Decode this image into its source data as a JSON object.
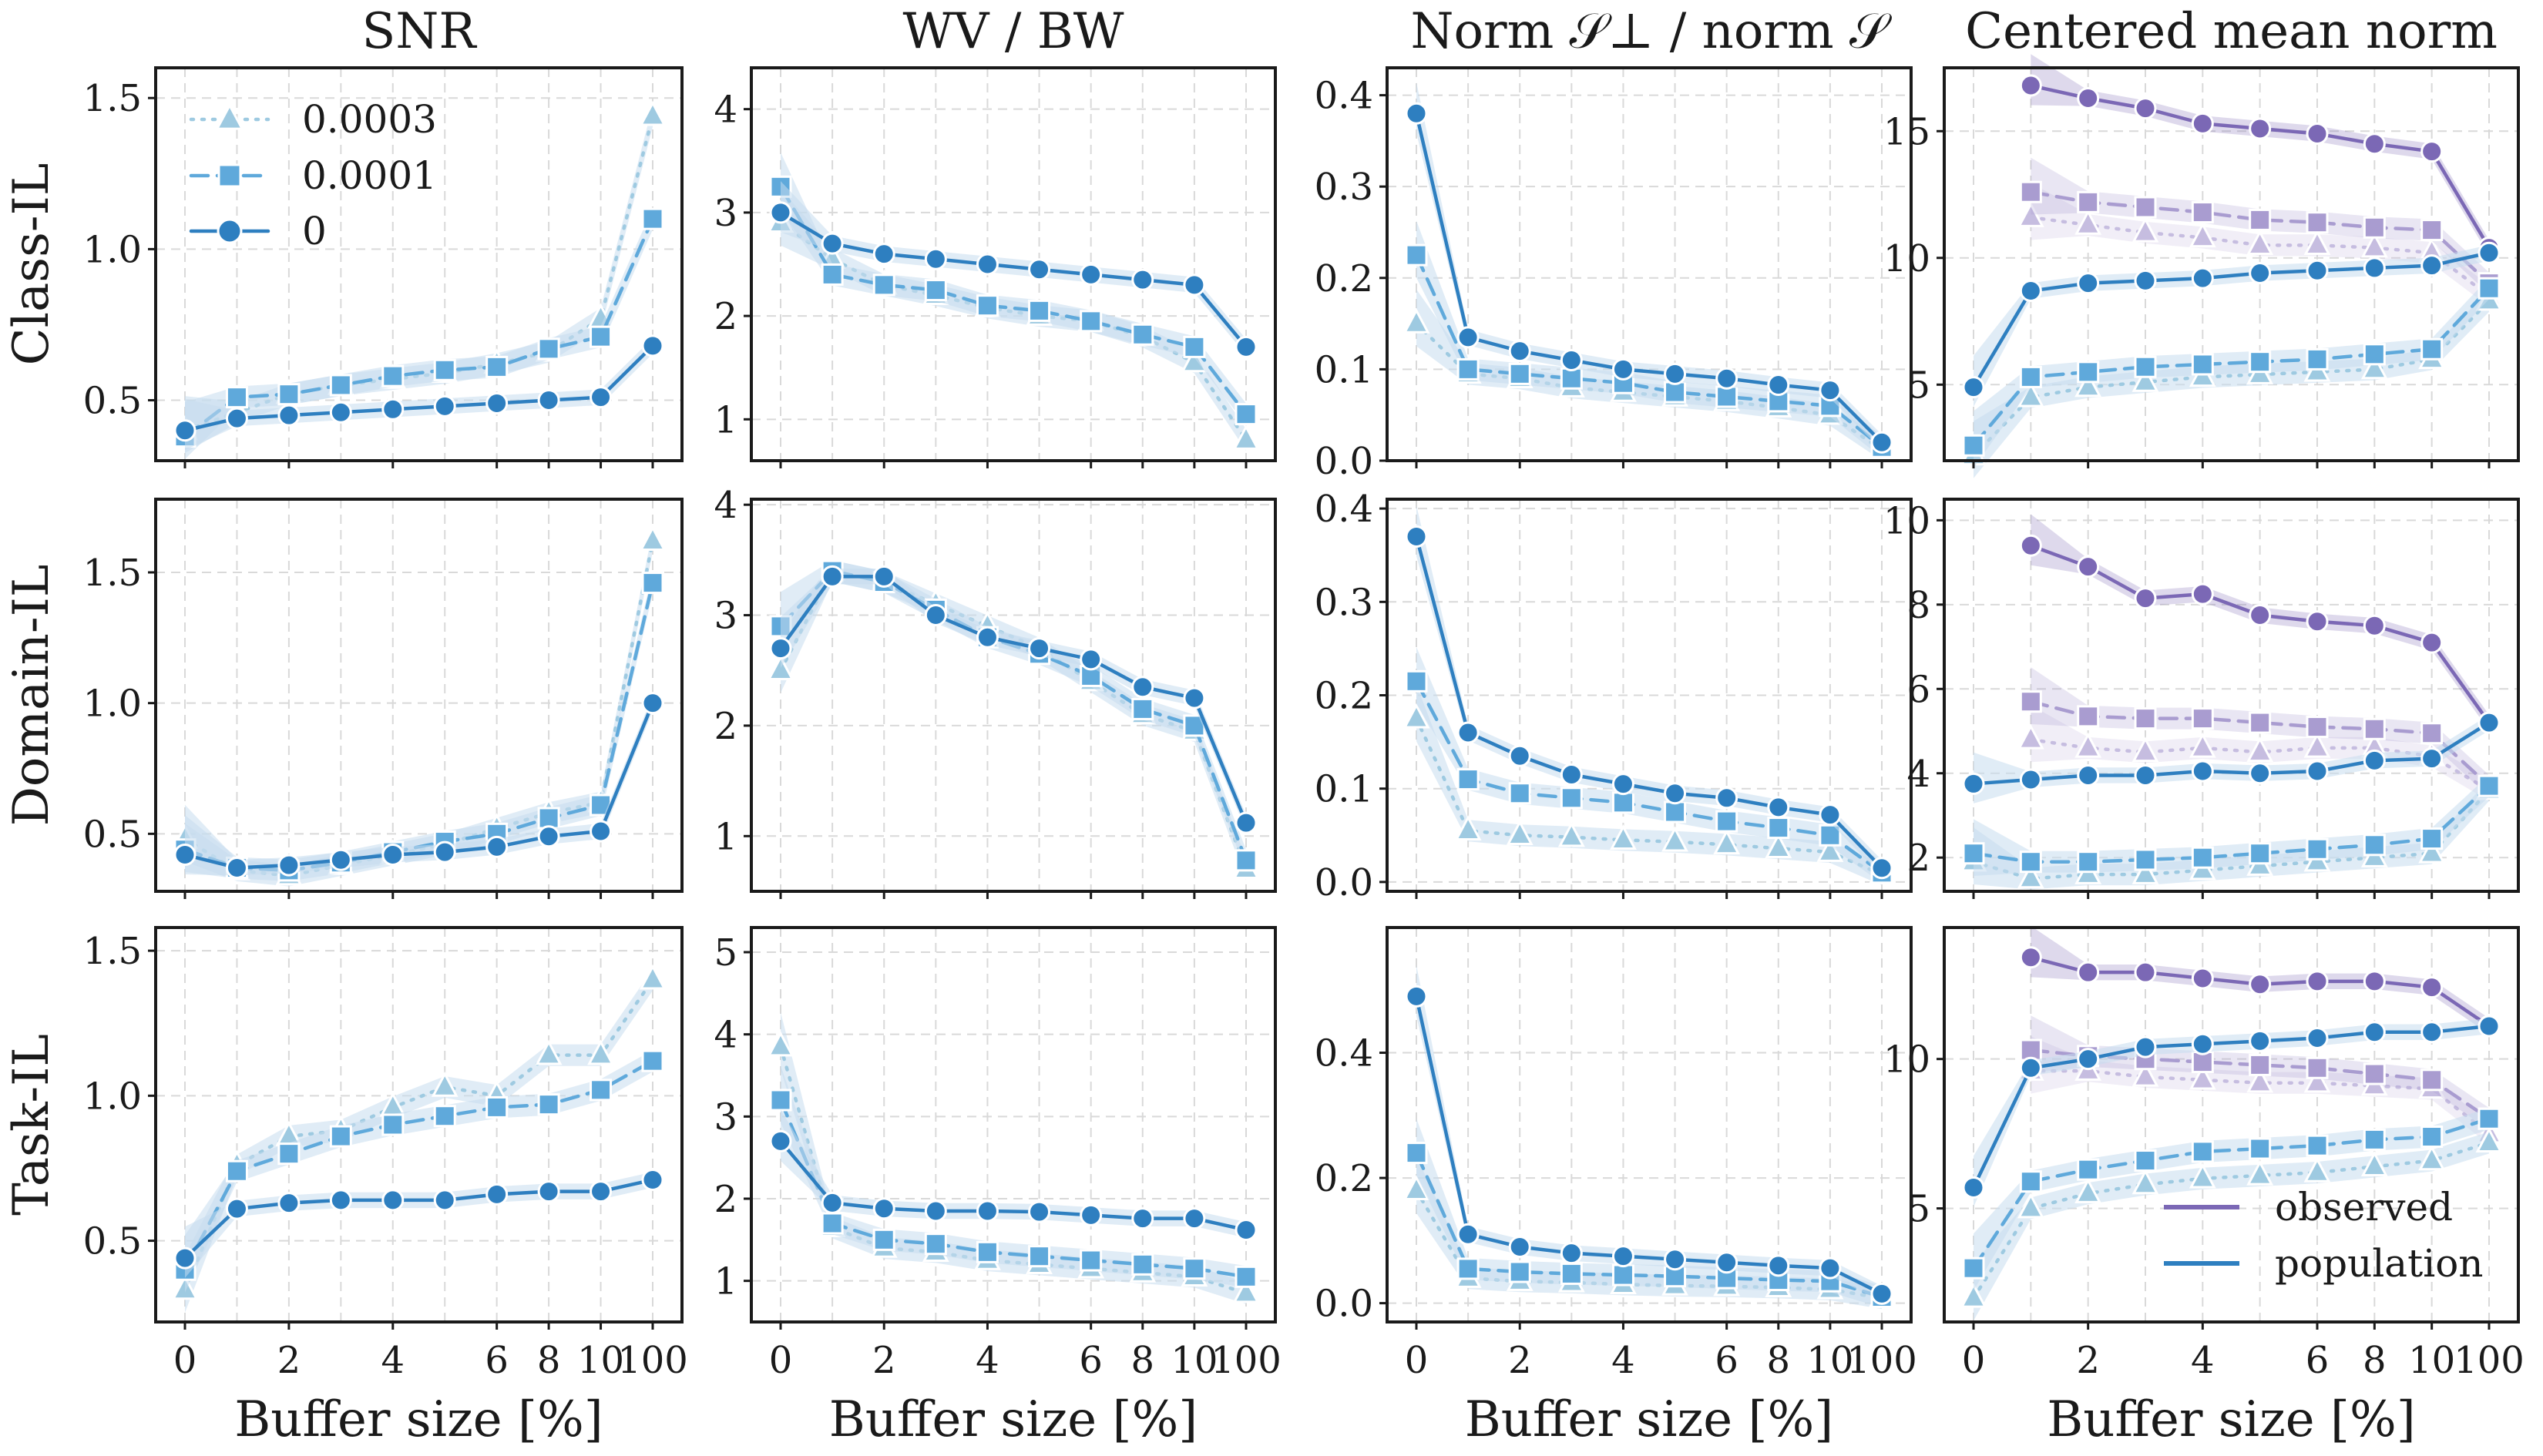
{
  "chart_data": {
    "type": "line",
    "x_tick_labels": [
      "0",
      "2",
      "4",
      "6",
      "8",
      "10",
      "100"
    ],
    "x_values": [
      "0",
      "1",
      "2",
      "3",
      "4",
      "5",
      "6",
      "8",
      "10",
      "100"
    ],
    "xlabel": "Buffer size [%]",
    "column_titles": [
      "SNR",
      "WV / BW",
      "Norm 𝒮⊥ / norm 𝒮",
      "Centered mean norm"
    ],
    "row_labels": [
      "Class-IL",
      "Domain-IL",
      "Task-IL"
    ],
    "legend_weight_decay": {
      "placement": "upper-left of Class-IL / SNR panel",
      "entries": [
        {
          "label": "0.0003",
          "marker": "triangle",
          "style": "dotted"
        },
        {
          "label": "0.0001",
          "marker": "square",
          "style": "dashed"
        },
        {
          "label": "0",
          "marker": "circle",
          "style": "solid"
        }
      ]
    },
    "legend_norm": {
      "placement": "lower-right of Task-IL / Centered mean norm panel",
      "entries": [
        {
          "label": "observed",
          "color": "#7b68b5"
        },
        {
          "label": "population",
          "color": "#2e7fc0"
        }
      ]
    },
    "colors": {
      "wd_0": "#2e7fc0",
      "wd_0001": "#5fa9db",
      "wd_0003": "#9ecae1",
      "observed_0": "#7b68b5",
      "observed_0001": "#a99cd0",
      "observed_0003": "#c6bde0",
      "band": "#c6dcef",
      "grid": "#d9d9d9"
    },
    "grid": true,
    "panels": [
      {
        "row": "Class-IL",
        "col": "SNR",
        "ylim": [
          0.3,
          1.6
        ],
        "yticks": [
          "0.5",
          "1.0",
          "1.5"
        ],
        "series": [
          {
            "wd": "0.0003",
            "values": [
              0.4,
              0.46,
              0.52,
              0.55,
              0.57,
              0.59,
              0.62,
              0.66,
              0.77,
              1.44
            ]
          },
          {
            "wd": "0.0001",
            "values": [
              0.38,
              0.51,
              0.52,
              0.55,
              0.58,
              0.6,
              0.61,
              0.67,
              0.71,
              1.1
            ]
          },
          {
            "wd": "0",
            "values": [
              0.4,
              0.44,
              0.45,
              0.46,
              0.47,
              0.48,
              0.49,
              0.5,
              0.51,
              0.68
            ]
          }
        ]
      },
      {
        "row": "Class-IL",
        "col": "WV / BW",
        "ylim": [
          0.6,
          4.4
        ],
        "yticks": [
          "1",
          "2",
          "3",
          "4"
        ],
        "series": [
          {
            "wd": "0.0003",
            "values": [
              2.9,
              2.55,
              2.3,
              2.2,
              2.08,
              2.0,
              1.95,
              1.8,
              1.55,
              0.8
            ]
          },
          {
            "wd": "0.0001",
            "values": [
              3.25,
              2.4,
              2.3,
              2.25,
              2.1,
              2.05,
              1.95,
              1.82,
              1.7,
              1.05
            ]
          },
          {
            "wd": "0",
            "values": [
              3.0,
              2.7,
              2.6,
              2.55,
              2.5,
              2.45,
              2.4,
              2.35,
              2.3,
              1.7
            ]
          }
        ]
      },
      {
        "row": "Class-IL",
        "col": "Norm 𝒮⊥ / norm 𝒮",
        "ylim": [
          0.0,
          0.43
        ],
        "yticks": [
          "0.0",
          "0.1",
          "0.2",
          "0.3",
          "0.4"
        ],
        "series": [
          {
            "wd": "0.0003",
            "values": [
              0.15,
              0.095,
              0.09,
              0.08,
              0.075,
              0.07,
              0.065,
              0.058,
              0.05,
              0.012
            ]
          },
          {
            "wd": "0.0001",
            "values": [
              0.225,
              0.1,
              0.095,
              0.09,
              0.085,
              0.075,
              0.07,
              0.065,
              0.06,
              0.015
            ]
          },
          {
            "wd": "0",
            "values": [
              0.38,
              0.135,
              0.12,
              0.11,
              0.1,
              0.095,
              0.09,
              0.083,
              0.077,
              0.02
            ]
          }
        ]
      },
      {
        "row": "Class-IL",
        "col": "Centered mean norm",
        "ylim": [
          2.0,
          17.5
        ],
        "yticks": [
          "5",
          "10",
          "15"
        ],
        "series": [
          {
            "wd": "0.0003",
            "kind": "observed",
            "values": [
              null,
              11.6,
              11.3,
              11.0,
              10.8,
              10.5,
              10.5,
              10.4,
              10.2,
              8.5
            ]
          },
          {
            "wd": "0.0001",
            "kind": "observed",
            "values": [
              null,
              12.6,
              12.2,
              12.0,
              11.8,
              11.5,
              11.4,
              11.2,
              11.1,
              9.0
            ]
          },
          {
            "wd": "0",
            "kind": "observed",
            "values": [
              null,
              16.8,
              16.3,
              15.9,
              15.3,
              15.1,
              14.9,
              14.5,
              14.2,
              10.4
            ]
          },
          {
            "wd": "0.0003",
            "kind": "population",
            "values": [
              2.2,
              4.5,
              4.9,
              5.1,
              5.3,
              5.4,
              5.5,
              5.6,
              6.0,
              8.3
            ]
          },
          {
            "wd": "0.0001",
            "kind": "population",
            "values": [
              2.6,
              5.3,
              5.5,
              5.7,
              5.8,
              5.9,
              6.0,
              6.2,
              6.4,
              8.8
            ]
          },
          {
            "wd": "0",
            "kind": "population",
            "values": [
              4.9,
              8.7,
              9.0,
              9.1,
              9.2,
              9.4,
              9.5,
              9.6,
              9.7,
              10.2
            ]
          }
        ]
      },
      {
        "row": "Domain-IL",
        "col": "SNR",
        "ylim": [
          0.28,
          1.78
        ],
        "yticks": [
          "0.5",
          "1.0",
          "1.5"
        ],
        "series": [
          {
            "wd": "0.0003",
            "values": [
              0.48,
              0.36,
              0.34,
              0.38,
              0.42,
              0.46,
              0.52,
              0.58,
              0.62,
              1.62
            ]
          },
          {
            "wd": "0.0001",
            "values": [
              0.44,
              0.37,
              0.36,
              0.39,
              0.43,
              0.47,
              0.5,
              0.56,
              0.61,
              1.46
            ]
          },
          {
            "wd": "0",
            "values": [
              0.42,
              0.37,
              0.38,
              0.4,
              0.42,
              0.43,
              0.45,
              0.49,
              0.51,
              1.0
            ]
          }
        ]
      },
      {
        "row": "Domain-IL",
        "col": "WV / BW",
        "ylim": [
          0.5,
          4.05
        ],
        "yticks": [
          "1",
          "2",
          "3",
          "4"
        ],
        "series": [
          {
            "wd": "0.0003",
            "values": [
              2.5,
              3.4,
              3.3,
              3.1,
              2.9,
              2.7,
              2.4,
              2.1,
              1.95,
              0.7
            ]
          },
          {
            "wd": "0.0001",
            "values": [
              2.9,
              3.4,
              3.3,
              3.05,
              2.8,
              2.65,
              2.45,
              2.15,
              2.0,
              0.78
            ]
          },
          {
            "wd": "0",
            "values": [
              2.7,
              3.35,
              3.35,
              3.0,
              2.8,
              2.7,
              2.6,
              2.35,
              2.25,
              1.12
            ]
          }
        ]
      },
      {
        "row": "Domain-IL",
        "col": "Norm 𝒮⊥ / norm 𝒮",
        "ylim": [
          -0.01,
          0.41
        ],
        "yticks": [
          "0.0",
          "0.1",
          "0.2",
          "0.3",
          "0.4"
        ],
        "series": [
          {
            "wd": "0.0003",
            "values": [
              0.175,
              0.055,
              0.05,
              0.048,
              0.045,
              0.043,
              0.04,
              0.036,
              0.032,
              0.008
            ]
          },
          {
            "wd": "0.0001",
            "values": [
              0.215,
              0.11,
              0.095,
              0.09,
              0.085,
              0.075,
              0.065,
              0.058,
              0.05,
              0.01
            ]
          },
          {
            "wd": "0",
            "values": [
              0.37,
              0.16,
              0.135,
              0.115,
              0.105,
              0.095,
              0.09,
              0.08,
              0.072,
              0.015
            ]
          }
        ]
      },
      {
        "row": "Domain-IL",
        "col": "Centered mean norm",
        "ylim": [
          1.2,
          10.5
        ],
        "yticks": [
          "2",
          "4",
          "6",
          "8",
          "10"
        ],
        "series": [
          {
            "wd": "0.0003",
            "kind": "observed",
            "values": [
              null,
              4.8,
              4.6,
              4.5,
              4.6,
              4.5,
              4.6,
              4.6,
              4.4,
              3.6
            ]
          },
          {
            "wd": "0.0001",
            "kind": "observed",
            "values": [
              null,
              5.7,
              5.35,
              5.3,
              5.3,
              5.2,
              5.1,
              5.05,
              4.95,
              3.7
            ]
          },
          {
            "wd": "0",
            "kind": "observed",
            "values": [
              null,
              9.4,
              8.9,
              8.15,
              8.25,
              7.75,
              7.6,
              7.5,
              7.1,
              5.2
            ]
          },
          {
            "wd": "0.0003",
            "kind": "population",
            "values": [
              1.9,
              1.5,
              1.6,
              1.6,
              1.7,
              1.8,
              1.9,
              2.0,
              2.1,
              3.6
            ]
          },
          {
            "wd": "0.0001",
            "kind": "population",
            "values": [
              2.1,
              1.9,
              1.9,
              1.95,
              2.0,
              2.1,
              2.2,
              2.3,
              2.45,
              3.7
            ]
          },
          {
            "wd": "0",
            "kind": "population",
            "values": [
              3.75,
              3.85,
              3.95,
              3.95,
              4.05,
              4.0,
              4.05,
              4.3,
              4.35,
              5.2
            ]
          }
        ]
      },
      {
        "row": "Task-IL",
        "col": "SNR",
        "ylim": [
          0.22,
          1.58
        ],
        "yticks": [
          "0.5",
          "1.0",
          "1.5"
        ],
        "series": [
          {
            "wd": "0.0003",
            "values": [
              0.33,
              0.76,
              0.86,
              0.88,
              0.96,
              1.03,
              1.0,
              1.14,
              1.14,
              1.4
            ]
          },
          {
            "wd": "0.0001",
            "values": [
              0.4,
              0.74,
              0.8,
              0.86,
              0.9,
              0.93,
              0.96,
              0.97,
              1.02,
              1.12
            ]
          },
          {
            "wd": "0",
            "values": [
              0.44,
              0.61,
              0.63,
              0.64,
              0.64,
              0.64,
              0.66,
              0.67,
              0.67,
              0.71
            ]
          }
        ]
      },
      {
        "row": "Task-IL",
        "col": "WV / BW",
        "ylim": [
          0.5,
          5.3
        ],
        "yticks": [
          "1",
          "2",
          "3",
          "4",
          "5"
        ],
        "series": [
          {
            "wd": "0.0003",
            "values": [
              3.85,
              1.65,
              1.4,
              1.35,
              1.25,
              1.2,
              1.15,
              1.1,
              1.05,
              0.85
            ]
          },
          {
            "wd": "0.0001",
            "values": [
              3.2,
              1.7,
              1.5,
              1.45,
              1.35,
              1.3,
              1.25,
              1.2,
              1.15,
              1.05
            ]
          },
          {
            "wd": "0",
            "values": [
              2.7,
              1.95,
              1.88,
              1.85,
              1.85,
              1.84,
              1.8,
              1.76,
              1.76,
              1.62
            ]
          }
        ]
      },
      {
        "row": "Task-IL",
        "col": "Norm 𝒮⊥ / norm 𝒮",
        "ylim": [
          -0.03,
          0.6
        ],
        "yticks": [
          "0.0",
          "0.2",
          "0.4"
        ],
        "series": [
          {
            "wd": "0.0003",
            "values": [
              0.18,
              0.04,
              0.035,
              0.033,
              0.03,
              0.028,
              0.027,
              0.025,
              0.022,
              0.008
            ]
          },
          {
            "wd": "0.0001",
            "values": [
              0.24,
              0.055,
              0.05,
              0.047,
              0.045,
              0.043,
              0.04,
              0.037,
              0.035,
              0.01
            ]
          },
          {
            "wd": "0",
            "values": [
              0.49,
              0.11,
              0.09,
              0.08,
              0.075,
              0.07,
              0.065,
              0.06,
              0.056,
              0.015
            ]
          }
        ]
      },
      {
        "row": "Task-IL",
        "col": "Centered mean norm",
        "ylim": [
          1.2,
          14.4
        ],
        "yticks": [
          "5",
          "10"
        ],
        "series": [
          {
            "wd": "0.0003",
            "kind": "observed",
            "values": [
              null,
              9.6,
              9.6,
              9.4,
              9.3,
              9.2,
              9.2,
              9.1,
              9.0,
              7.5
            ]
          },
          {
            "wd": "0.0001",
            "kind": "observed",
            "values": [
              null,
              10.3,
              10.1,
              10.0,
              9.9,
              9.8,
              9.7,
              9.5,
              9.3,
              8.0
            ]
          },
          {
            "wd": "0",
            "kind": "observed",
            "values": [
              null,
              13.4,
              12.9,
              12.9,
              12.7,
              12.5,
              12.6,
              12.6,
              12.4,
              11.1
            ]
          },
          {
            "wd": "0.0003",
            "kind": "population",
            "values": [
              2.0,
              5.0,
              5.5,
              5.8,
              6.0,
              6.1,
              6.2,
              6.4,
              6.6,
              7.2
            ]
          },
          {
            "wd": "0.0001",
            "kind": "population",
            "values": [
              3.0,
              5.9,
              6.3,
              6.6,
              6.9,
              7.0,
              7.1,
              7.3,
              7.4,
              8.0
            ]
          },
          {
            "wd": "0",
            "kind": "population",
            "values": [
              5.7,
              9.7,
              10.0,
              10.4,
              10.5,
              10.6,
              10.7,
              10.9,
              10.9,
              11.1
            ]
          }
        ]
      }
    ]
  }
}
